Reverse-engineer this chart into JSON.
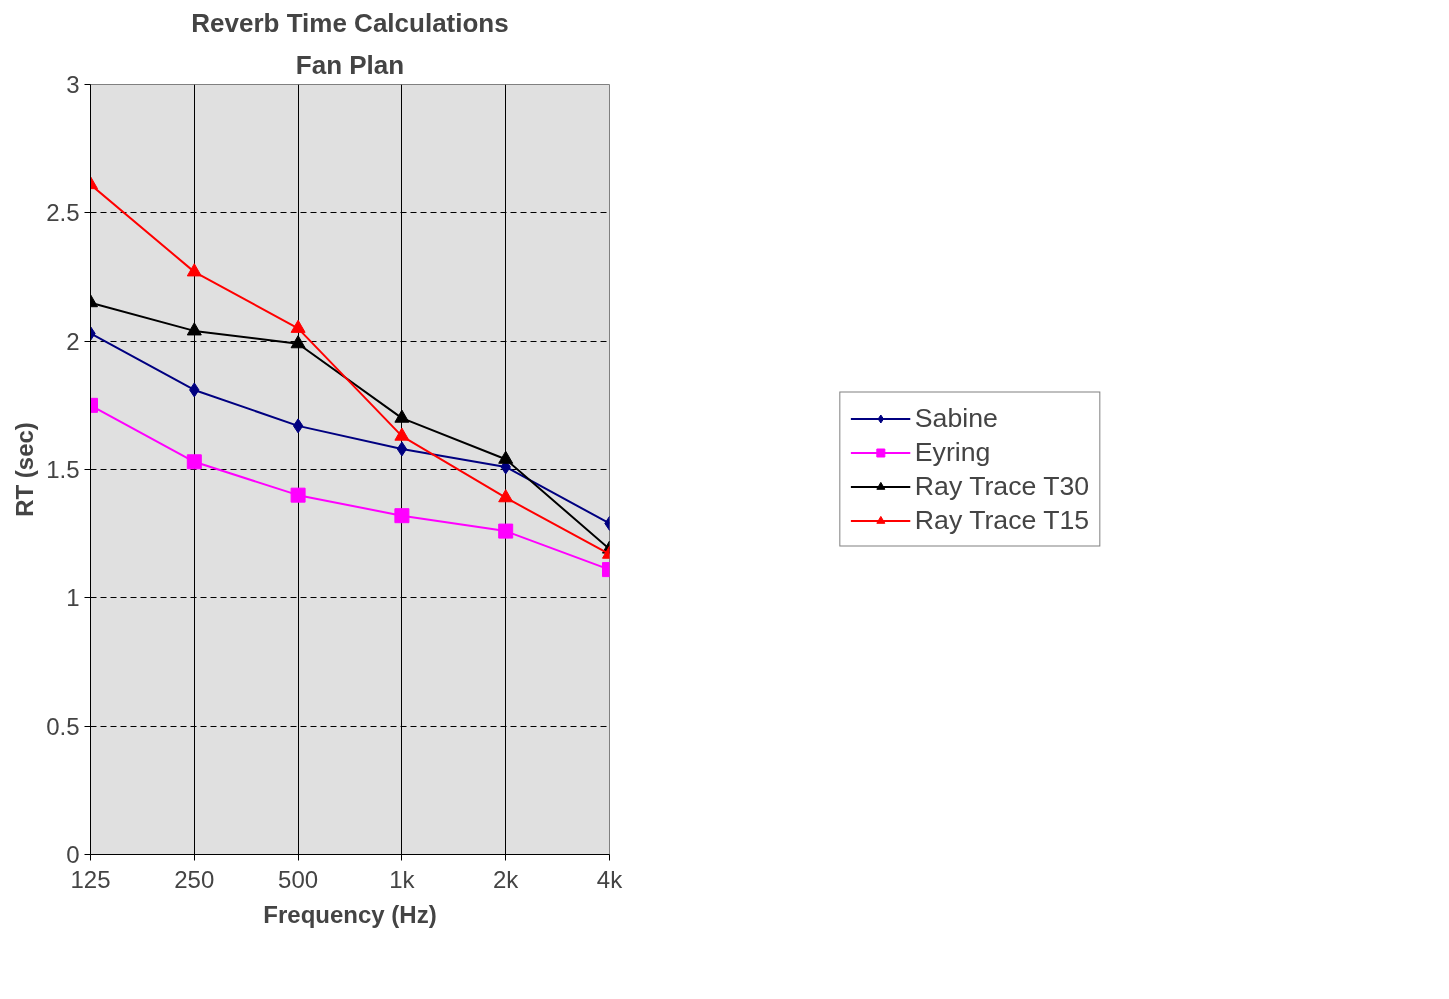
{
  "chart_data": {
    "type": "line",
    "title": "Reverb Time Calculations",
    "subtitle": "Fan Plan",
    "xlabel": "Frequency (Hz)",
    "ylabel": "RT (sec)",
    "categories": [
      "125",
      "250",
      "500",
      "1k",
      "2k",
      "4k"
    ],
    "ylim": [
      0,
      3
    ],
    "yticks": [
      0,
      0.5,
      1,
      1.5,
      2,
      2.5,
      3
    ],
    "grid": true,
    "legend": "right",
    "series": [
      {
        "name": "Sabine",
        "color": "#000080",
        "marker": "diamond",
        "values": [
          2.03,
          1.81,
          1.67,
          1.58,
          1.51,
          1.29
        ]
      },
      {
        "name": "Eyring",
        "color": "#ff00ff",
        "marker": "square",
        "values": [
          1.75,
          1.53,
          1.4,
          1.32,
          1.26,
          1.11
        ]
      },
      {
        "name": "Ray Trace T30",
        "color": "#000000",
        "marker": "triangle",
        "values": [
          2.15,
          2.04,
          1.99,
          1.7,
          1.54,
          1.19
        ]
      },
      {
        "name": "Ray Trace T15",
        "color": "#ff0000",
        "marker": "triangle",
        "values": [
          2.61,
          2.27,
          2.05,
          1.63,
          1.39,
          1.17
        ]
      }
    ]
  }
}
